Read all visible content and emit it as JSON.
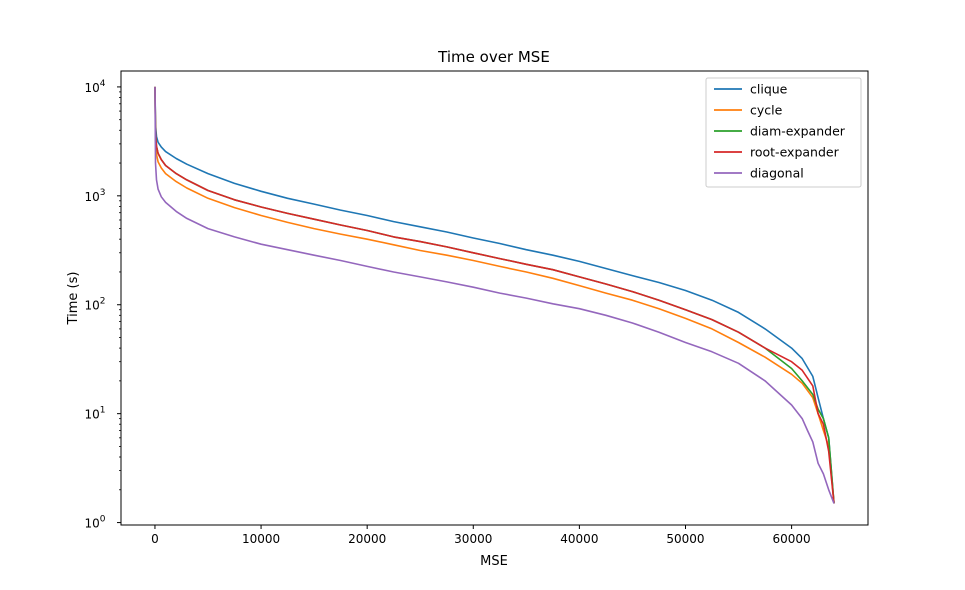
{
  "chart_data": {
    "type": "line",
    "title": "Time over MSE",
    "xlabel": "MSE",
    "ylabel": "Time (s)",
    "yscale": "log",
    "xlim": [
      -3200,
      67200
    ],
    "ylim": [
      0.95,
      14000
    ],
    "x_ticks": [
      {
        "value": 0,
        "label": "0"
      },
      {
        "value": 10000,
        "label": "10000"
      },
      {
        "value": 20000,
        "label": "20000"
      },
      {
        "value": 30000,
        "label": "30000"
      },
      {
        "value": 40000,
        "label": "40000"
      },
      {
        "value": 50000,
        "label": "50000"
      },
      {
        "value": 60000,
        "label": "60000"
      }
    ],
    "y_ticks": [
      {
        "value": 1,
        "base": "10",
        "exp": "0"
      },
      {
        "value": 10,
        "base": "10",
        "exp": "1"
      },
      {
        "value": 100,
        "base": "10",
        "exp": "2"
      },
      {
        "value": 1000,
        "base": "10",
        "exp": "3"
      },
      {
        "value": 10000,
        "base": "10",
        "exp": "4"
      }
    ],
    "grid": false,
    "legend_position": "top-right",
    "series": [
      {
        "name": "clique",
        "color": "#1f77b4",
        "x": [
          0,
          50,
          150,
          300,
          600,
          1000,
          2000,
          3000,
          5000,
          7500,
          10000,
          12500,
          15000,
          17500,
          20000,
          22500,
          25000,
          27500,
          30000,
          32500,
          35000,
          37500,
          40000,
          42500,
          45000,
          47500,
          50000,
          52500,
          55000,
          57500,
          60000,
          61000,
          62000,
          62500,
          63000,
          63500,
          64000
        ],
        "y": [
          10000,
          4500,
          3500,
          3100,
          2800,
          2550,
          2200,
          1950,
          1600,
          1300,
          1100,
          950,
          840,
          740,
          660,
          580,
          520,
          465,
          410,
          365,
          320,
          285,
          250,
          215,
          185,
          160,
          135,
          110,
          85,
          60,
          40,
          32,
          22,
          14,
          9,
          6,
          1.5
        ]
      },
      {
        "name": "cycle",
        "color": "#ff7f0e",
        "x": [
          0,
          50,
          150,
          300,
          600,
          1000,
          2000,
          3000,
          5000,
          7500,
          10000,
          12500,
          15000,
          17500,
          20000,
          22500,
          25000,
          27500,
          30000,
          32500,
          35000,
          37500,
          40000,
          42500,
          45000,
          47500,
          50000,
          52500,
          55000,
          57500,
          60000,
          61000,
          62000,
          62500,
          63000,
          63500,
          64000
        ],
        "y": [
          10000,
          3200,
          2400,
          2050,
          1800,
          1600,
          1350,
          1180,
          950,
          780,
          660,
          570,
          500,
          445,
          400,
          355,
          315,
          285,
          255,
          225,
          200,
          175,
          150,
          128,
          110,
          92,
          75,
          60,
          45,
          33,
          23,
          19,
          14,
          10,
          7,
          5,
          1.5
        ]
      },
      {
        "name": "diam-expander",
        "color": "#2ca02c",
        "x": [
          0,
          50,
          150,
          300,
          600,
          1000,
          2000,
          3000,
          5000,
          7500,
          10000,
          12500,
          15000,
          17500,
          20000,
          22500,
          25000,
          27500,
          30000,
          32500,
          35000,
          37500,
          40000,
          42500,
          45000,
          47500,
          50000,
          52500,
          55000,
          57500,
          60000,
          61000,
          62000,
          62500,
          63000,
          63500,
          64000
        ],
        "y": [
          10000,
          3700,
          2850,
          2450,
          2150,
          1900,
          1600,
          1400,
          1120,
          920,
          790,
          690,
          610,
          540,
          480,
          420,
          380,
          340,
          300,
          265,
          235,
          210,
          180,
          155,
          132,
          110,
          90,
          73,
          56,
          40,
          26,
          20,
          15,
          11,
          9,
          6,
          1.5
        ]
      },
      {
        "name": "root-expander",
        "color": "#d62728",
        "x": [
          0,
          50,
          150,
          300,
          600,
          1000,
          2000,
          3000,
          5000,
          7500,
          10000,
          12500,
          15000,
          17500,
          20000,
          22500,
          25000,
          27500,
          30000,
          32500,
          35000,
          37500,
          40000,
          42500,
          45000,
          47500,
          50000,
          52500,
          55000,
          57500,
          60000,
          61000,
          62000,
          62500,
          63000,
          63500,
          64000
        ],
        "y": [
          10000,
          3700,
          2850,
          2450,
          2150,
          1900,
          1600,
          1400,
          1120,
          920,
          790,
          690,
          610,
          540,
          480,
          420,
          380,
          340,
          300,
          265,
          235,
          210,
          180,
          155,
          132,
          110,
          90,
          73,
          56,
          40,
          30,
          25,
          18,
          10,
          8,
          4.5,
          1.5
        ]
      },
      {
        "name": "diagonal",
        "color": "#9467bd",
        "x": [
          0,
          50,
          150,
          300,
          600,
          1000,
          2000,
          3000,
          5000,
          7500,
          10000,
          12500,
          15000,
          17500,
          20000,
          22500,
          25000,
          27500,
          30000,
          32500,
          35000,
          37500,
          40000,
          42500,
          45000,
          47500,
          50000,
          52500,
          55000,
          57500,
          60000,
          61000,
          61500,
          62000,
          62500,
          63000,
          63500,
          64000
        ],
        "y": [
          10000,
          2000,
          1400,
          1150,
          980,
          870,
          720,
          620,
          500,
          420,
          360,
          320,
          285,
          255,
          225,
          200,
          180,
          162,
          145,
          128,
          115,
          102,
          92,
          80,
          68,
          56,
          45,
          37,
          29,
          20,
          12,
          9,
          7,
          5.5,
          3.5,
          2.8,
          2.0,
          1.5
        ]
      }
    ]
  }
}
